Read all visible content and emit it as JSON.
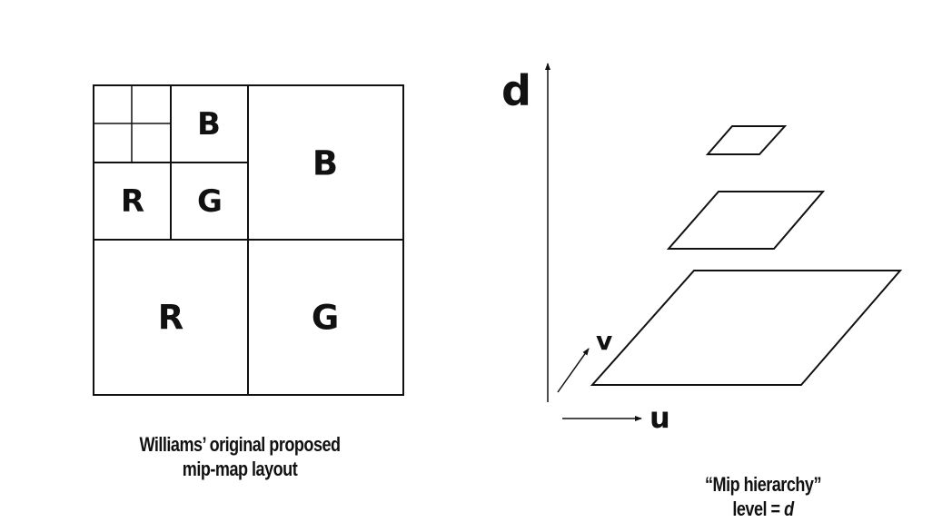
{
  "mipmap_layout": {
    "labels": {
      "tiny_b": "B",
      "tiny_r": "R",
      "tiny_g": "G",
      "large_b": "B",
      "large_r": "R",
      "large_g": "G"
    },
    "caption": {
      "line1": "Williams’ original proposed",
      "line2": "mip-map layout"
    }
  },
  "mip_hierarchy": {
    "axes": {
      "d": "d",
      "u": "u",
      "v": "v"
    },
    "levels": 3,
    "caption": {
      "line1": "“Mip hierarchy”",
      "line2_prefix": "level = ",
      "line2_var": "d"
    }
  },
  "colors": {
    "stroke": "#111111",
    "background": "#ffffff"
  }
}
